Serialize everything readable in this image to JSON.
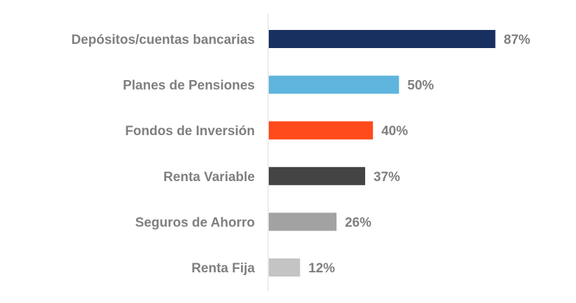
{
  "chart_data": {
    "type": "bar",
    "orientation": "horizontal",
    "categories": [
      "Depósitos/cuentas bancarias",
      "Planes de Pensiones",
      "Fondos de Inversión",
      "Renta Variable",
      "Seguros de Ahorro",
      "Renta Fija"
    ],
    "values": [
      87,
      50,
      40,
      37,
      26,
      12
    ],
    "value_labels": [
      "87%",
      "50%",
      "40%",
      "37%",
      "26%",
      "12%"
    ],
    "bar_colors": [
      "#17305f",
      "#5fb4de",
      "#ff4a1c",
      "#444444",
      "#a2a2a2",
      "#c4c4c4"
    ],
    "value_axis_range": [
      0,
      100
    ],
    "grid": false,
    "legend": "none"
  }
}
